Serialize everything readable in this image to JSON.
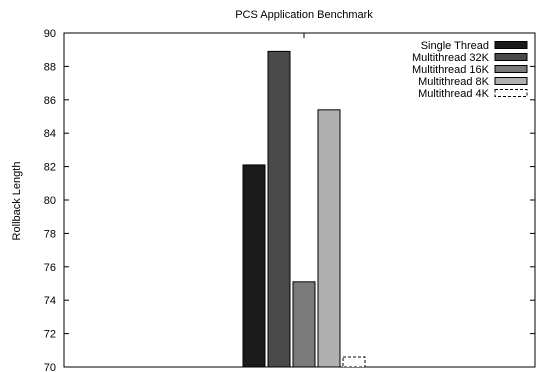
{
  "chart_data": {
    "type": "bar",
    "title": "PCS Application Benchmark",
    "xlabel": "",
    "ylabel": "Rollback Length",
    "ylim": [
      70,
      90
    ],
    "yticks": [
      70,
      72,
      74,
      76,
      78,
      80,
      82,
      84,
      86,
      88,
      90
    ],
    "grid": false,
    "legend_position": "top-right",
    "series": [
      {
        "name": "Single Thread",
        "value": 82.1,
        "color": "#1a1a1a",
        "pattern": "solid"
      },
      {
        "name": "Multithread 32K",
        "value": 88.9,
        "color": "#4a4a4a",
        "pattern": "solid"
      },
      {
        "name": "Multithread 16K",
        "value": 75.1,
        "color": "#7a7a7a",
        "pattern": "solid"
      },
      {
        "name": "Multithread 8K",
        "value": 85.4,
        "color": "#b0b0b0",
        "pattern": "solid"
      },
      {
        "name": "Multithread 4K",
        "value": 70.6,
        "color": "#ffffff",
        "pattern": "dashed"
      }
    ]
  }
}
